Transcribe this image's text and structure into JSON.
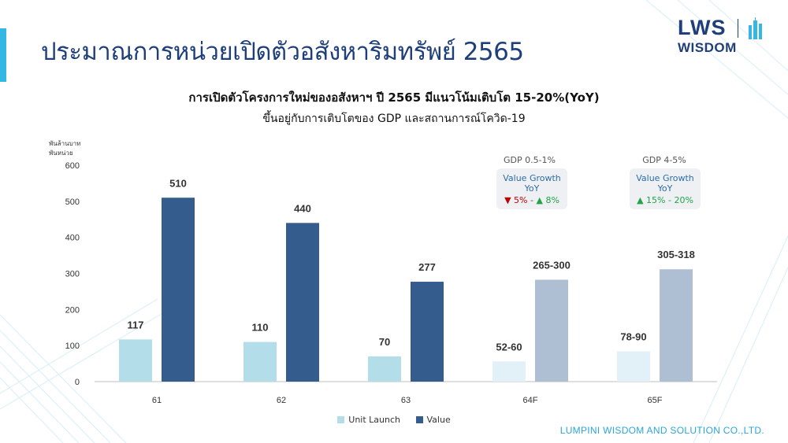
{
  "page": {
    "title": "ประมาณการหน่วยเปิดตัวอสังหาริมทรัพย์ 2565",
    "subtitle": "การเปิดตัวโครงการใหม่ของอสังหาฯ ปี 2565 มีแนวโน้มเติบโต 15-20%(YoY)",
    "subtitle2": "ขึ้นอยู่กับการเติบโตของ GDP และสถานการณ์โควิด-19",
    "footer": "LUMPINI WISDOM AND SOLUTION CO.,LTD.",
    "accent_color": "#35b7e6",
    "title_color": "#1f3f7a"
  },
  "logo": {
    "top": "LWS",
    "bottom": "WISDOM",
    "icon": "building-skyline-icon"
  },
  "annotations": [
    {
      "gdp": "GDP 0.5-1%",
      "line1": "Value Growth",
      "line2": "YoY",
      "low": "5%",
      "low_dir": "down",
      "sep": "-",
      "high": "8%",
      "high_dir": "up"
    },
    {
      "gdp": "GDP 4-5%",
      "line1": "Value Growth",
      "line2": "YoY",
      "range": "15% - 20%",
      "dir": "up"
    }
  ],
  "chart_data": {
    "type": "bar",
    "units": [
      "พันล้านบาท",
      "พันหน่วย"
    ],
    "categories": [
      "61",
      "62",
      "63",
      "64F",
      "65F"
    ],
    "ylim": [
      0,
      600
    ],
    "yticks": [
      0,
      100,
      200,
      300,
      400,
      500,
      600
    ],
    "grid": false,
    "legend_position": "bottom",
    "series": [
      {
        "name": "Unit Launch",
        "values": [
          117,
          110,
          70,
          56,
          84
        ],
        "labels": [
          "117",
          "110",
          "70",
          "52-60",
          "78-90"
        ],
        "color": "#b3dde9",
        "forecast_color": "#e2f1f7"
      },
      {
        "name": "Value",
        "values": [
          510,
          440,
          277,
          282.5,
          311.5
        ],
        "labels": [
          "510",
          "440",
          "277",
          "265-300",
          "305-318"
        ],
        "color": "#345d8e",
        "forecast_color": "#afbfd3"
      }
    ],
    "forecast_from_index": 3
  }
}
